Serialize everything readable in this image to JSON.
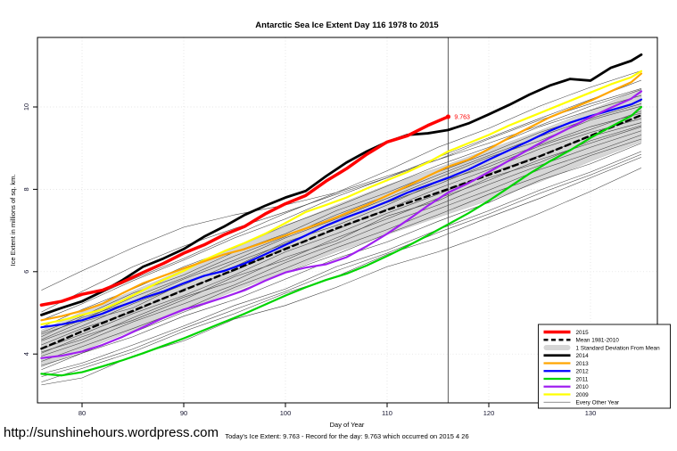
{
  "title": "Antarctic Sea Ice Extent Day 116 1978 to 2015",
  "url": "http://sunshinehours.wordpress.com",
  "footer": {
    "xlabel": "Day of Year",
    "footnote": "Today's Ice Extent: 9.763  - Record for the day: 9.763 which occurred on 2015 4 26"
  },
  "chart_data": {
    "type": "line",
    "title": "Antarctic Sea Ice Extent Day 116 1978 to 2015",
    "xlabel": "Day of Year",
    "ylabel": "Ice Extent in millions of sq. km.",
    "xlim": [
      75.6,
      136.6
    ],
    "ylim": [
      2.8,
      11.7
    ],
    "grid": true,
    "legend_position": "bottom-right",
    "xticks": [
      80,
      90,
      100,
      110,
      120,
      130
    ],
    "yticks": [
      4,
      6,
      8,
      10
    ],
    "vline_day": 116,
    "annotation": {
      "label": "9.763",
      "day": 116,
      "value": 9.763,
      "color": "#FF0000"
    },
    "band": {
      "name": "1 Standard Deviation From Mean",
      "color": "#D6D6D6",
      "edge_color": "#BBBBBB",
      "days": [
        76,
        80,
        85,
        90,
        95,
        100,
        105,
        110,
        115,
        120,
        125,
        130,
        135
      ],
      "upper": [
        4.58,
        5.02,
        5.53,
        6.05,
        6.57,
        7.1,
        7.62,
        8.1,
        8.52,
        8.97,
        9.42,
        9.92,
        10.45
      ],
      "lower": [
        3.68,
        4.08,
        4.57,
        5.05,
        5.53,
        6.0,
        6.48,
        6.9,
        7.32,
        7.73,
        8.18,
        8.68,
        9.15
      ]
    },
    "series": [
      {
        "name": "Mean 1981-2010",
        "color": "#000000",
        "width": 2.4,
        "dash": "6,4.5",
        "days": [
          76,
          80,
          85,
          90,
          95,
          100,
          105,
          110,
          115,
          120,
          125,
          130,
          135
        ],
        "values": [
          4.13,
          4.55,
          5.05,
          5.55,
          6.05,
          6.55,
          7.05,
          7.5,
          7.92,
          8.35,
          8.8,
          9.3,
          9.8
        ]
      },
      {
        "name": "2009",
        "color": "#FFFF00",
        "width": 2.2,
        "dash": null,
        "days": [
          76,
          78,
          80,
          82,
          84,
          86,
          88,
          90,
          92,
          94,
          96,
          98,
          100,
          102,
          104,
          106,
          108,
          110,
          112,
          114,
          116,
          118,
          120,
          122,
          124,
          126,
          128,
          130,
          132,
          134,
          135
        ],
        "values": [
          4.72,
          4.82,
          4.95,
          5.08,
          5.3,
          5.55,
          5.8,
          6.02,
          6.28,
          6.5,
          6.7,
          6.92,
          7.18,
          7.45,
          7.62,
          7.8,
          8.02,
          8.22,
          8.42,
          8.65,
          8.92,
          9.12,
          9.32,
          9.55,
          9.75,
          9.95,
          10.15,
          10.35,
          10.55,
          10.72,
          10.87
        ]
      },
      {
        "name": "2013",
        "color": "#FFA500",
        "width": 2.2,
        "dash": null,
        "days": [
          76,
          78,
          80,
          82,
          84,
          86,
          88,
          90,
          92,
          94,
          96,
          98,
          100,
          102,
          104,
          106,
          108,
          110,
          112,
          114,
          116,
          118,
          120,
          122,
          124,
          126,
          128,
          130,
          132,
          134,
          135
        ],
        "values": [
          4.82,
          4.92,
          5.05,
          5.22,
          5.48,
          5.72,
          5.9,
          6.08,
          6.25,
          6.42,
          6.55,
          6.72,
          6.88,
          7.05,
          7.22,
          7.42,
          7.62,
          7.85,
          8.08,
          8.32,
          8.55,
          8.72,
          8.98,
          9.25,
          9.5,
          9.75,
          9.95,
          10.15,
          10.38,
          10.6,
          10.81
        ]
      },
      {
        "name": "2012",
        "color": "#0000FF",
        "width": 2.2,
        "dash": null,
        "days": [
          76,
          78,
          80,
          82,
          84,
          86,
          88,
          90,
          92,
          94,
          96,
          98,
          100,
          102,
          104,
          106,
          108,
          110,
          112,
          114,
          116,
          118,
          120,
          122,
          124,
          126,
          128,
          130,
          132,
          134,
          135
        ],
        "values": [
          4.65,
          4.72,
          4.82,
          4.98,
          5.18,
          5.36,
          5.52,
          5.72,
          5.9,
          6.02,
          6.2,
          6.42,
          6.65,
          6.88,
          7.12,
          7.32,
          7.5,
          7.7,
          7.92,
          8.1,
          8.28,
          8.48,
          8.72,
          8.95,
          9.18,
          9.42,
          9.62,
          9.78,
          9.92,
          10.06,
          10.18
        ]
      },
      {
        "name": "2010",
        "color": "#A020F0",
        "width": 2.2,
        "dash": null,
        "days": [
          76,
          78,
          80,
          82,
          84,
          86,
          88,
          90,
          92,
          94,
          96,
          98,
          100,
          102,
          104,
          106,
          108,
          110,
          112,
          114,
          116,
          118,
          120,
          122,
          124,
          126,
          128,
          130,
          132,
          134,
          135
        ],
        "values": [
          3.9,
          3.96,
          4.06,
          4.22,
          4.42,
          4.65,
          4.88,
          5.08,
          5.22,
          5.38,
          5.55,
          5.78,
          5.98,
          6.1,
          6.18,
          6.35,
          6.62,
          6.92,
          7.25,
          7.6,
          7.92,
          8.15,
          8.42,
          8.7,
          8.98,
          9.25,
          9.5,
          9.75,
          9.98,
          10.2,
          10.38
        ]
      },
      {
        "name": "2011",
        "color": "#00D400",
        "width": 2.2,
        "dash": null,
        "days": [
          76,
          78,
          80,
          82,
          84,
          86,
          88,
          90,
          92,
          94,
          96,
          98,
          100,
          102,
          104,
          106,
          108,
          110,
          112,
          114,
          116,
          118,
          120,
          122,
          124,
          126,
          128,
          130,
          132,
          134,
          135
        ],
        "values": [
          3.52,
          3.48,
          3.56,
          3.7,
          3.85,
          4.02,
          4.2,
          4.38,
          4.58,
          4.78,
          4.98,
          5.2,
          5.42,
          5.62,
          5.8,
          5.95,
          6.15,
          6.38,
          6.62,
          6.88,
          7.15,
          7.42,
          7.72,
          8.05,
          8.38,
          8.68,
          8.95,
          9.25,
          9.52,
          9.78,
          10.0
        ]
      },
      {
        "name": "2014",
        "color": "#000000",
        "width": 2.8,
        "dash": null,
        "days": [
          76,
          78,
          80,
          82,
          84,
          86,
          88,
          90,
          92,
          94,
          96,
          98,
          100,
          102,
          104,
          106,
          108,
          110,
          112,
          114,
          116,
          118,
          120,
          122,
          124,
          126,
          128,
          130,
          132,
          134,
          135
        ],
        "values": [
          4.95,
          5.12,
          5.28,
          5.52,
          5.8,
          6.12,
          6.32,
          6.55,
          6.85,
          7.1,
          7.38,
          7.6,
          7.8,
          7.96,
          8.32,
          8.65,
          8.92,
          9.15,
          9.32,
          9.36,
          9.44,
          9.6,
          9.82,
          10.05,
          10.3,
          10.52,
          10.68,
          10.64,
          10.95,
          11.12,
          11.27
        ]
      },
      {
        "name": "2015",
        "color": "#FF0000",
        "width": 3.5,
        "dash": null,
        "days": [
          76,
          78,
          80,
          82,
          84,
          86,
          88,
          90,
          92,
          94,
          96,
          98,
          100,
          102,
          104,
          106,
          108,
          110,
          112,
          114,
          116
        ],
        "values": [
          5.19,
          5.28,
          5.45,
          5.55,
          5.75,
          5.98,
          6.2,
          6.45,
          6.65,
          6.9,
          7.1,
          7.4,
          7.65,
          7.85,
          8.2,
          8.5,
          8.85,
          9.15,
          9.3,
          9.55,
          9.763
        ]
      }
    ],
    "other_years": {
      "name": "Every Other Year",
      "color": "#404040",
      "width": 0.55,
      "days": [
        76,
        80,
        85,
        90,
        95,
        100,
        105,
        110,
        115,
        120,
        125,
        130,
        135
      ],
      "lines": [
        [
          3.25,
          3.42,
          3.95,
          4.32,
          4.85,
          5.18,
          5.62,
          6.12,
          6.48,
          6.92,
          7.42,
          7.95,
          8.52
        ],
        [
          3.32,
          3.65,
          4.05,
          4.55,
          4.98,
          5.48,
          5.88,
          6.42,
          6.82,
          7.32,
          7.78,
          8.28,
          8.78
        ],
        [
          3.45,
          3.72,
          4.12,
          4.62,
          5.08,
          5.52,
          6.02,
          6.45,
          6.95,
          7.4,
          7.9,
          8.35,
          8.85
        ],
        [
          3.52,
          3.78,
          4.22,
          4.68,
          5.18,
          5.58,
          6.12,
          6.52,
          7.02,
          7.48,
          7.98,
          8.42,
          8.92
        ],
        [
          3.62,
          4.02,
          4.42,
          4.92,
          5.32,
          5.82,
          6.32,
          6.72,
          7.22,
          7.68,
          8.22,
          8.62,
          9.12
        ],
        [
          3.72,
          4.02,
          4.52,
          5.02,
          5.48,
          5.98,
          6.42,
          6.92,
          7.38,
          7.88,
          8.32,
          8.82,
          9.22
        ],
        [
          3.82,
          4.18,
          4.62,
          5.08,
          5.62,
          6.08,
          6.58,
          7.02,
          7.52,
          7.98,
          8.48,
          8.88,
          9.32
        ],
        [
          3.95,
          4.28,
          4.78,
          5.22,
          5.68,
          6.22,
          6.68,
          7.18,
          7.62,
          8.12,
          8.58,
          9.02,
          9.42
        ],
        [
          4.02,
          4.42,
          4.82,
          5.32,
          5.88,
          6.28,
          6.82,
          7.28,
          7.78,
          8.22,
          8.72,
          9.12,
          9.52
        ],
        [
          4.05,
          4.35,
          4.88,
          5.38,
          5.78,
          6.35,
          6.75,
          7.35,
          7.72,
          8.28,
          8.65,
          9.18,
          9.55
        ],
        [
          4.12,
          4.48,
          4.98,
          5.42,
          5.92,
          6.48,
          6.92,
          7.42,
          7.88,
          8.38,
          8.82,
          9.28,
          9.62
        ],
        [
          4.22,
          4.62,
          5.02,
          5.58,
          6.02,
          6.58,
          7.02,
          7.52,
          8.02,
          8.48,
          8.98,
          9.38,
          9.72
        ],
        [
          4.32,
          4.68,
          5.22,
          5.68,
          6.22,
          6.68,
          7.22,
          7.68,
          8.12,
          8.62,
          9.08,
          9.52,
          9.85
        ],
        [
          4.35,
          4.78,
          5.12,
          5.72,
          6.12,
          6.72,
          7.12,
          7.62,
          8.18,
          8.55,
          9.05,
          9.45,
          9.9
        ],
        [
          4.42,
          4.88,
          5.28,
          5.82,
          6.28,
          6.82,
          7.28,
          7.78,
          8.28,
          8.78,
          9.18,
          9.68,
          10.02
        ],
        [
          4.48,
          4.82,
          5.38,
          5.85,
          6.38,
          6.85,
          7.38,
          7.85,
          8.35,
          8.82,
          9.28,
          9.72,
          10.08
        ],
        [
          4.52,
          4.92,
          5.48,
          5.92,
          6.48,
          6.92,
          7.48,
          7.92,
          8.42,
          8.88,
          9.38,
          9.78,
          10.15
        ],
        [
          4.65,
          5.08,
          5.58,
          6.12,
          6.58,
          7.12,
          7.58,
          8.08,
          8.58,
          9.02,
          9.52,
          9.92,
          10.28
        ],
        [
          4.82,
          5.22,
          5.78,
          6.28,
          6.82,
          7.28,
          7.82,
          8.28,
          8.72,
          9.22,
          9.68,
          10.08,
          10.45
        ],
        [
          4.92,
          5.28,
          5.82,
          6.32,
          6.88,
          7.42,
          7.92,
          8.45,
          9.02,
          9.48,
          10.02,
          10.48,
          10.88
        ],
        [
          5.02,
          5.52,
          6.12,
          6.62,
          7.05,
          7.45,
          7.88,
          8.28,
          8.78,
          9.25,
          9.72,
          10.18,
          10.65
        ],
        [
          5.55,
          6.02,
          6.58,
          7.08,
          7.38,
          7.62,
          7.92,
          8.32,
          8.72,
          9.12,
          9.55,
          10.02,
          10.42
        ]
      ]
    },
    "legend": {
      "items": [
        {
          "label": "2015",
          "style": "line",
          "color": "#FF0000",
          "width": 3.5
        },
        {
          "label": "Mean 1981-2010",
          "style": "dashed",
          "color": "#000000",
          "width": 2.4
        },
        {
          "label": "1 Standard Deviation From Mean",
          "style": "band",
          "color": "#D6D6D6",
          "width": 6
        },
        {
          "label": "2014",
          "style": "line",
          "color": "#000000",
          "width": 2.8
        },
        {
          "label": "2013",
          "style": "line",
          "color": "#FFA500",
          "width": 2.2
        },
        {
          "label": "2012",
          "style": "line",
          "color": "#0000FF",
          "width": 2.2
        },
        {
          "label": "2011",
          "style": "line",
          "color": "#00D400",
          "width": 2.2
        },
        {
          "label": "2010",
          "style": "line",
          "color": "#A020F0",
          "width": 2.2
        },
        {
          "label": "2009",
          "style": "line",
          "color": "#FFFF00",
          "width": 2.2
        },
        {
          "label": "Every Other Year",
          "style": "thin",
          "color": "#6E6E6E",
          "width": 0.8
        }
      ]
    }
  }
}
